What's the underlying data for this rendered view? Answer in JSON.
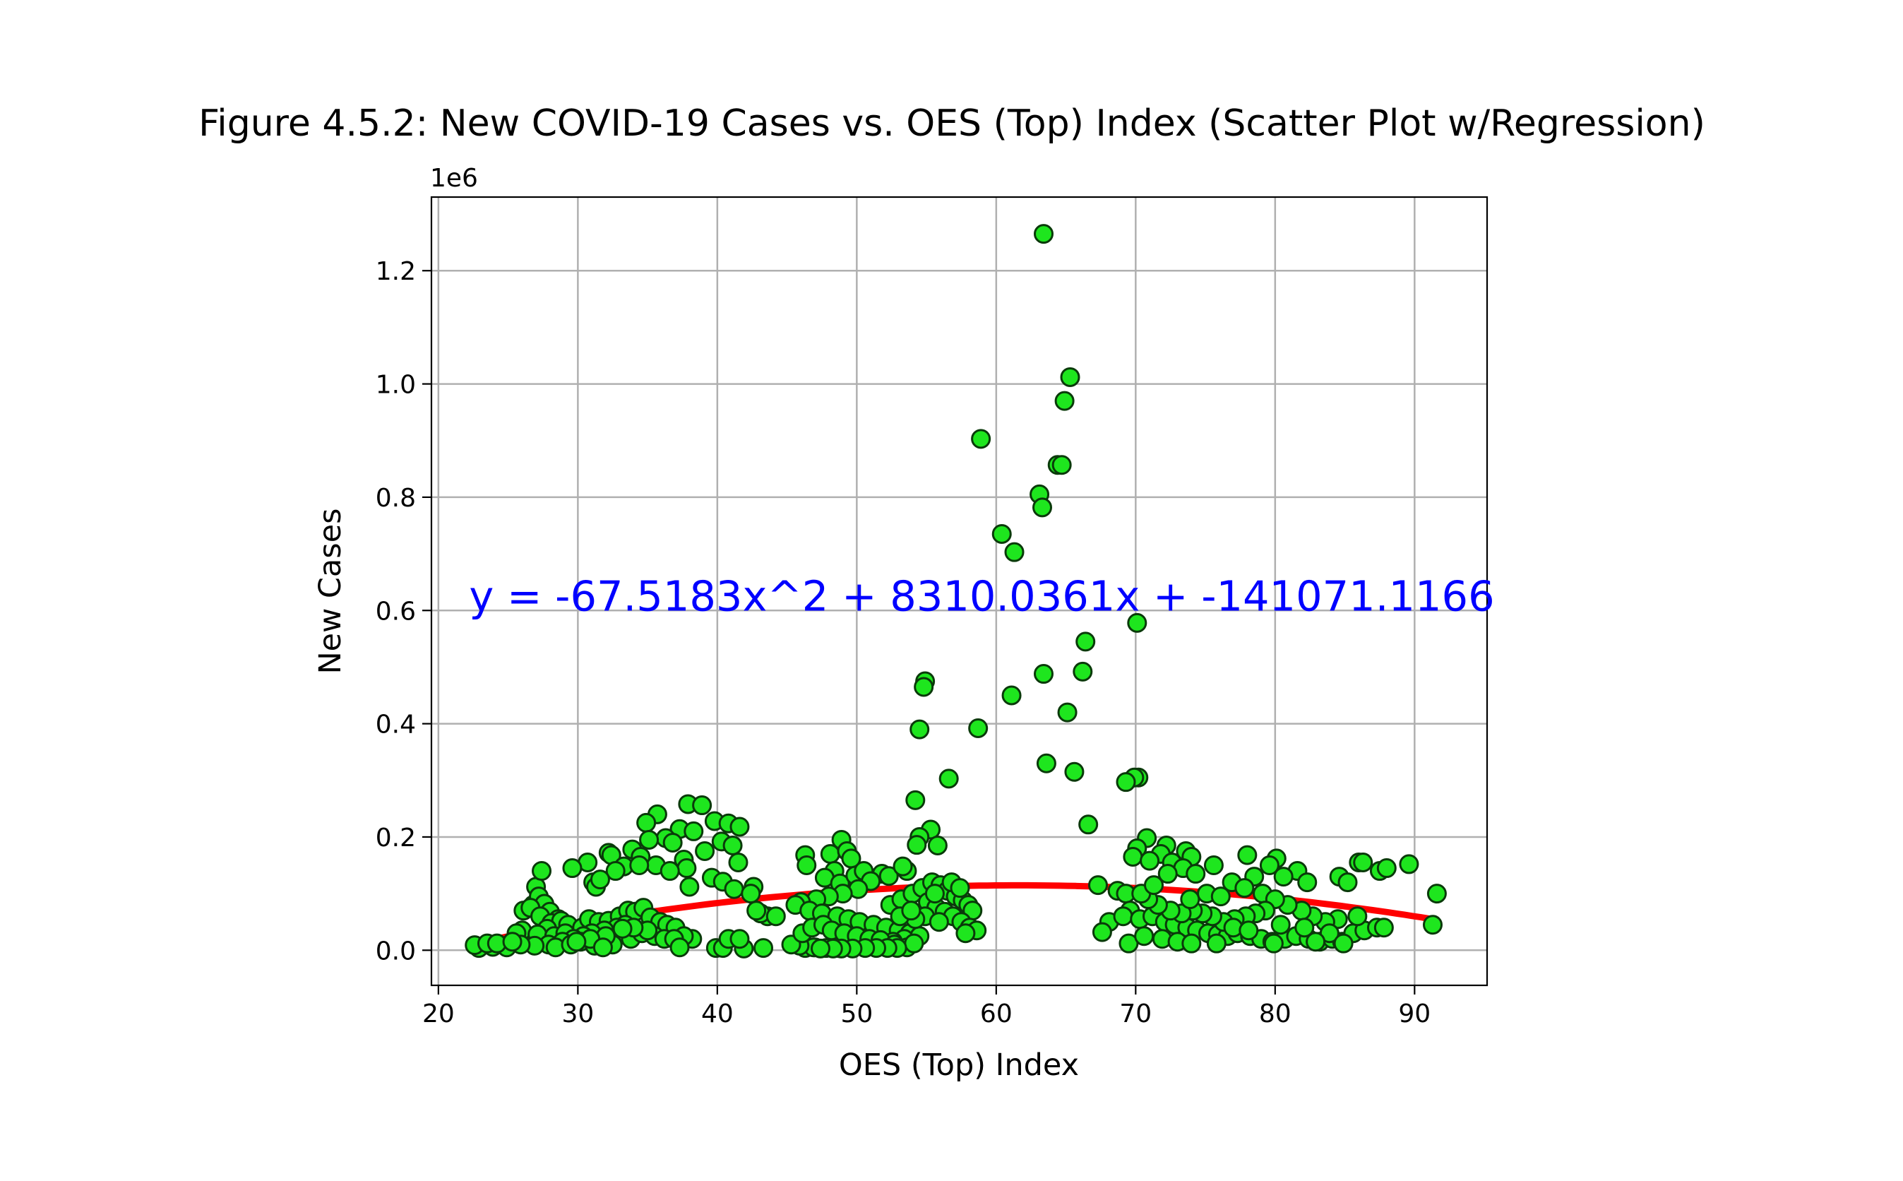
{
  "chart_data": {
    "type": "scatter",
    "title": "Figure 4.5.2: New COVID-19 Cases vs. OES (Top) Index (Scatter Plot w/Regression)",
    "xlabel": "OES (Top) Index",
    "ylabel": "New Cases",
    "y_offset_label": "1e6",
    "xlim": [
      19.5,
      95.2
    ],
    "ylim": [
      -0.062,
      1.33
    ],
    "x_ticks": [
      20,
      30,
      40,
      50,
      60,
      70,
      80,
      90
    ],
    "x_tick_labels": [
      "20",
      "30",
      "40",
      "50",
      "60",
      "70",
      "80",
      "90"
    ],
    "y_ticks": [
      0.0,
      0.2,
      0.4,
      0.6,
      0.8,
      1.0,
      1.2
    ],
    "y_tick_labels": [
      "0.0",
      "0.2",
      "0.4",
      "0.6",
      "0.8",
      "1.0",
      "1.2"
    ],
    "grid": true,
    "annotation": {
      "text": "y = -67.5183x^2 + 8310.0361x + -141071.1166",
      "x": 22.2,
      "y": 0.6,
      "color": "#0000ff"
    },
    "regression": {
      "coefficients": [
        -67.5183,
        8310.0361,
        -141071.1166
      ],
      "x_range": [
        22.5,
        91.6
      ],
      "color": "#ff0000"
    },
    "marker": {
      "fill": "#1ee61e",
      "edge": "#0a3a0a"
    },
    "points": [
      [
        63.4,
        1.265
      ],
      [
        65.3,
        1.012
      ],
      [
        64.9,
        0.97
      ],
      [
        58.9,
        0.903
      ],
      [
        64.4,
        0.857
      ],
      [
        64.7,
        0.857
      ],
      [
        63.1,
        0.805
      ],
      [
        63.3,
        0.782
      ],
      [
        60.4,
        0.735
      ],
      [
        61.3,
        0.703
      ],
      [
        70.1,
        0.578
      ],
      [
        66.4,
        0.545
      ],
      [
        63.4,
        0.488
      ],
      [
        66.2,
        0.492
      ],
      [
        54.9,
        0.475
      ],
      [
        54.8,
        0.465
      ],
      [
        61.1,
        0.45
      ],
      [
        65.1,
        0.42
      ],
      [
        54.5,
        0.39
      ],
      [
        58.7,
        0.392
      ],
      [
        63.6,
        0.33
      ],
      [
        65.6,
        0.315
      ],
      [
        70.2,
        0.305
      ],
      [
        69.9,
        0.305
      ],
      [
        69.3,
        0.297
      ],
      [
        56.6,
        0.303
      ],
      [
        54.2,
        0.265
      ],
      [
        66.6,
        0.222
      ],
      [
        55.3,
        0.213
      ],
      [
        54.5,
        0.2
      ],
      [
        55.8,
        0.185
      ],
      [
        54.3,
        0.186
      ],
      [
        37.9,
        0.258
      ],
      [
        38.9,
        0.256
      ],
      [
        35.7,
        0.24
      ],
      [
        39.8,
        0.228
      ],
      [
        40.8,
        0.224
      ],
      [
        34.9,
        0.225
      ],
      [
        41.6,
        0.218
      ],
      [
        37.3,
        0.214
      ],
      [
        38.3,
        0.21
      ],
      [
        36.3,
        0.198
      ],
      [
        35.1,
        0.195
      ],
      [
        40.3,
        0.192
      ],
      [
        36.8,
        0.19
      ],
      [
        33.9,
        0.178
      ],
      [
        39.1,
        0.175
      ],
      [
        41.1,
        0.185
      ],
      [
        34.5,
        0.165
      ],
      [
        37.6,
        0.16
      ],
      [
        32.2,
        0.172
      ],
      [
        32.4,
        0.168
      ],
      [
        30.7,
        0.155
      ],
      [
        29.6,
        0.145
      ],
      [
        33.3,
        0.148
      ],
      [
        35.6,
        0.15
      ],
      [
        37.8,
        0.145
      ],
      [
        39.6,
        0.128
      ],
      [
        31.1,
        0.12
      ],
      [
        31.3,
        0.112
      ],
      [
        27.0,
        0.112
      ],
      [
        27.4,
        0.14
      ],
      [
        40.4,
        0.121
      ],
      [
        38.0,
        0.112
      ],
      [
        41.2,
        0.108
      ],
      [
        42.6,
        0.112
      ],
      [
        42.4,
        0.1
      ],
      [
        36.6,
        0.14
      ],
      [
        34.4,
        0.15
      ],
      [
        41.5,
        0.155
      ],
      [
        32.7,
        0.14
      ],
      [
        31.6,
        0.125
      ],
      [
        26.8,
        0.08
      ],
      [
        27.2,
        0.095
      ],
      [
        27.6,
        0.082
      ],
      [
        26.1,
        0.07
      ],
      [
        26.6,
        0.075
      ],
      [
        28.0,
        0.068
      ],
      [
        27.3,
        0.06
      ],
      [
        28.6,
        0.055
      ],
      [
        28.1,
        0.048
      ],
      [
        28.8,
        0.052
      ],
      [
        29.3,
        0.045
      ],
      [
        27.8,
        0.038
      ],
      [
        26.0,
        0.035
      ],
      [
        25.6,
        0.03
      ],
      [
        27.1,
        0.028
      ],
      [
        28.3,
        0.025
      ],
      [
        29.1,
        0.03
      ],
      [
        30.3,
        0.04
      ],
      [
        30.8,
        0.055
      ],
      [
        31.5,
        0.05
      ],
      [
        32.2,
        0.052
      ],
      [
        33.0,
        0.06
      ],
      [
        33.6,
        0.07
      ],
      [
        34.1,
        0.068
      ],
      [
        34.7,
        0.075
      ],
      [
        35.2,
        0.058
      ],
      [
        35.9,
        0.05
      ],
      [
        36.4,
        0.045
      ],
      [
        37.0,
        0.04
      ],
      [
        33.4,
        0.045
      ],
      [
        32.8,
        0.04
      ],
      [
        31.9,
        0.035
      ],
      [
        31.0,
        0.03
      ],
      [
        30.4,
        0.025
      ],
      [
        29.7,
        0.02
      ],
      [
        28.9,
        0.015
      ],
      [
        27.9,
        0.01
      ],
      [
        26.9,
        0.008
      ],
      [
        25.9,
        0.01
      ],
      [
        24.9,
        0.005
      ],
      [
        23.9,
        0.006
      ],
      [
        22.9,
        0.004
      ],
      [
        22.6,
        0.009
      ],
      [
        23.5,
        0.012
      ],
      [
        24.2,
        0.012
      ],
      [
        25.3,
        0.015
      ],
      [
        28.4,
        0.005
      ],
      [
        29.5,
        0.01
      ],
      [
        30.2,
        0.015
      ],
      [
        31.2,
        0.008
      ],
      [
        32.5,
        0.01
      ],
      [
        33.8,
        0.02
      ],
      [
        34.6,
        0.03
      ],
      [
        35.5,
        0.025
      ],
      [
        36.2,
        0.02
      ],
      [
        37.2,
        0.015
      ],
      [
        38.2,
        0.02
      ],
      [
        37.6,
        0.025
      ],
      [
        36.9,
        0.02
      ],
      [
        35.0,
        0.035
      ],
      [
        34.0,
        0.04
      ],
      [
        33.2,
        0.038
      ],
      [
        32.0,
        0.025
      ],
      [
        30.9,
        0.02
      ],
      [
        29.9,
        0.015
      ],
      [
        31.8,
        0.005
      ],
      [
        37.3,
        0.005
      ],
      [
        39.9,
        0.004
      ],
      [
        40.4,
        0.004
      ],
      [
        41.9,
        0.003
      ],
      [
        43.3,
        0.004
      ],
      [
        46.3,
        0.004
      ],
      [
        47.0,
        0.005
      ],
      [
        40.8,
        0.02
      ],
      [
        41.6,
        0.02
      ],
      [
        43.6,
        0.06
      ],
      [
        43.1,
        0.065
      ],
      [
        44.2,
        0.06
      ],
      [
        42.8,
        0.07
      ],
      [
        46.3,
        0.168
      ],
      [
        46.4,
        0.15
      ],
      [
        48.9,
        0.195
      ],
      [
        48.1,
        0.17
      ],
      [
        49.3,
        0.175
      ],
      [
        49.6,
        0.162
      ],
      [
        48.4,
        0.14
      ],
      [
        47.7,
        0.128
      ],
      [
        48.8,
        0.118
      ],
      [
        49.9,
        0.132
      ],
      [
        50.5,
        0.14
      ],
      [
        51.8,
        0.135
      ],
      [
        52.3,
        0.131
      ],
      [
        53.6,
        0.14
      ],
      [
        53.3,
        0.148
      ],
      [
        51.0,
        0.122
      ],
      [
        50.1,
        0.108
      ],
      [
        49.0,
        0.1
      ],
      [
        48.0,
        0.095
      ],
      [
        47.1,
        0.09
      ],
      [
        46.0,
        0.085
      ],
      [
        45.6,
        0.08
      ],
      [
        46.6,
        0.07
      ],
      [
        47.5,
        0.065
      ],
      [
        48.6,
        0.06
      ],
      [
        49.4,
        0.055
      ],
      [
        50.2,
        0.05
      ],
      [
        51.2,
        0.045
      ],
      [
        52.1,
        0.04
      ],
      [
        53.0,
        0.035
      ],
      [
        53.8,
        0.03
      ],
      [
        54.5,
        0.025
      ],
      [
        53.4,
        0.02
      ],
      [
        52.6,
        0.015
      ],
      [
        51.6,
        0.01
      ],
      [
        50.7,
        0.008
      ],
      [
        49.8,
        0.006
      ],
      [
        48.7,
        0.004
      ],
      [
        47.8,
        0.004
      ],
      [
        46.9,
        0.005
      ],
      [
        45.9,
        0.008
      ],
      [
        45.3,
        0.01
      ],
      [
        46.1,
        0.03
      ],
      [
        46.8,
        0.04
      ],
      [
        47.6,
        0.045
      ],
      [
        48.2,
        0.035
      ],
      [
        49.1,
        0.03
      ],
      [
        50.0,
        0.025
      ],
      [
        50.9,
        0.02
      ],
      [
        51.7,
        0.018
      ],
      [
        52.7,
        0.01
      ],
      [
        53.6,
        0.005
      ],
      [
        54.1,
        0.012
      ],
      [
        52.9,
        0.004
      ],
      [
        52.2,
        0.004
      ],
      [
        51.4,
        0.004
      ],
      [
        50.6,
        0.004
      ],
      [
        49.7,
        0.003
      ],
      [
        48.9,
        0.003
      ],
      [
        48.3,
        0.003
      ],
      [
        47.4,
        0.003
      ],
      [
        52.4,
        0.08
      ],
      [
        53.2,
        0.09
      ],
      [
        54.0,
        0.1
      ],
      [
        54.7,
        0.11
      ],
      [
        55.4,
        0.12
      ],
      [
        56.0,
        0.115
      ],
      [
        56.5,
        0.105
      ],
      [
        57.1,
        0.095
      ],
      [
        57.6,
        0.088
      ],
      [
        58.0,
        0.08
      ],
      [
        58.3,
        0.07
      ],
      [
        55.1,
        0.085
      ],
      [
        55.7,
        0.075
      ],
      [
        56.3,
        0.068
      ],
      [
        56.9,
        0.06
      ],
      [
        57.5,
        0.05
      ],
      [
        58.1,
        0.04
      ],
      [
        58.6,
        0.035
      ],
      [
        57.8,
        0.03
      ],
      [
        54.9,
        0.06
      ],
      [
        54.2,
        0.055
      ],
      [
        55.9,
        0.05
      ],
      [
        53.1,
        0.06
      ],
      [
        53.9,
        0.07
      ],
      [
        55.6,
        0.1
      ],
      [
        56.8,
        0.12
      ],
      [
        57.4,
        0.11
      ],
      [
        70.8,
        0.198
      ],
      [
        72.2,
        0.185
      ],
      [
        73.6,
        0.175
      ],
      [
        74.0,
        0.165
      ],
      [
        71.8,
        0.17
      ],
      [
        72.6,
        0.155
      ],
      [
        70.1,
        0.18
      ],
      [
        69.8,
        0.165
      ],
      [
        71.0,
        0.158
      ],
      [
        73.4,
        0.145
      ],
      [
        72.3,
        0.135
      ],
      [
        74.3,
        0.135
      ],
      [
        75.6,
        0.15
      ],
      [
        78.0,
        0.168
      ],
      [
        80.1,
        0.162
      ],
      [
        79.6,
        0.15
      ],
      [
        81.6,
        0.14
      ],
      [
        78.5,
        0.13
      ],
      [
        76.9,
        0.12
      ],
      [
        77.8,
        0.11
      ],
      [
        79.1,
        0.1
      ],
      [
        80.6,
        0.13
      ],
      [
        82.3,
        0.12
      ],
      [
        84.6,
        0.13
      ],
      [
        85.2,
        0.12
      ],
      [
        86.0,
        0.155
      ],
      [
        86.3,
        0.155
      ],
      [
        87.5,
        0.14
      ],
      [
        88.0,
        0.145
      ],
      [
        89.6,
        0.152
      ],
      [
        91.6,
        0.1
      ],
      [
        91.3,
        0.045
      ],
      [
        67.3,
        0.115
      ],
      [
        68.1,
        0.05
      ],
      [
        67.6,
        0.032
      ],
      [
        68.7,
        0.105
      ],
      [
        69.3,
        0.1
      ],
      [
        69.6,
        0.07
      ],
      [
        69.1,
        0.06
      ],
      [
        70.3,
        0.055
      ],
      [
        71.2,
        0.06
      ],
      [
        72.1,
        0.05
      ],
      [
        72.8,
        0.045
      ],
      [
        73.7,
        0.04
      ],
      [
        74.4,
        0.035
      ],
      [
        75.2,
        0.03
      ],
      [
        75.9,
        0.028
      ],
      [
        76.6,
        0.025
      ],
      [
        77.3,
        0.03
      ],
      [
        78.2,
        0.025
      ],
      [
        79.0,
        0.02
      ],
      [
        79.8,
        0.015
      ],
      [
        80.7,
        0.02
      ],
      [
        81.5,
        0.025
      ],
      [
        82.4,
        0.02
      ],
      [
        83.2,
        0.015
      ],
      [
        84.1,
        0.02
      ],
      [
        84.8,
        0.015
      ],
      [
        85.6,
        0.03
      ],
      [
        86.4,
        0.035
      ],
      [
        87.3,
        0.04
      ],
      [
        87.8,
        0.04
      ],
      [
        85.9,
        0.06
      ],
      [
        84.5,
        0.055
      ],
      [
        83.6,
        0.05
      ],
      [
        82.7,
        0.06
      ],
      [
        81.9,
        0.07
      ],
      [
        80.9,
        0.08
      ],
      [
        80.0,
        0.09
      ],
      [
        79.3,
        0.07
      ],
      [
        78.6,
        0.065
      ],
      [
        77.9,
        0.06
      ],
      [
        77.1,
        0.055
      ],
      [
        76.3,
        0.05
      ],
      [
        75.5,
        0.06
      ],
      [
        74.8,
        0.065
      ],
      [
        74.1,
        0.07
      ],
      [
        73.3,
        0.065
      ],
      [
        72.5,
        0.07
      ],
      [
        71.6,
        0.08
      ],
      [
        70.9,
        0.09
      ],
      [
        70.4,
        0.1
      ],
      [
        71.3,
        0.115
      ],
      [
        73.9,
        0.09
      ],
      [
        75.1,
        0.1
      ],
      [
        76.1,
        0.095
      ],
      [
        77.0,
        0.04
      ],
      [
        78.1,
        0.035
      ],
      [
        80.4,
        0.045
      ],
      [
        82.1,
        0.04
      ],
      [
        83.9,
        0.03
      ],
      [
        69.5,
        0.012
      ],
      [
        70.6,
        0.025
      ],
      [
        71.9,
        0.02
      ],
      [
        73.0,
        0.015
      ],
      [
        74.0,
        0.012
      ],
      [
        75.8,
        0.012
      ],
      [
        79.9,
        0.012
      ],
      [
        82.9,
        0.015
      ],
      [
        84.9,
        0.012
      ]
    ]
  }
}
